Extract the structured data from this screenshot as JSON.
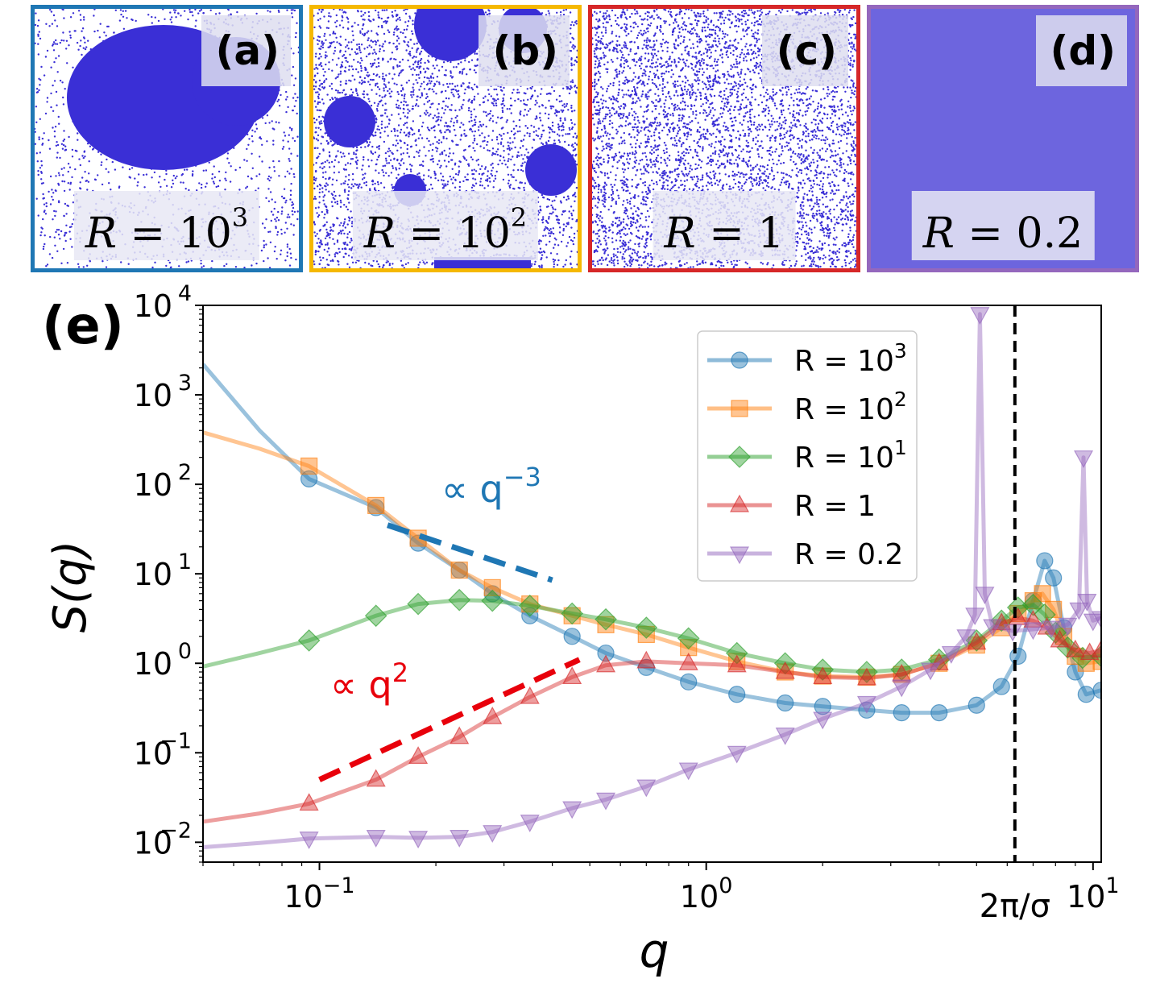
{
  "panels": [
    {
      "label": "(a)",
      "r_prefix": "R",
      "r_eq": " = ",
      "r_base": "10",
      "r_exp": "3",
      "color": "#1f77b4",
      "morphology": "single large cluster"
    },
    {
      "label": "(b)",
      "r_prefix": "R",
      "r_eq": " = ",
      "r_base": "10",
      "r_exp": "2",
      "color": "#f5b800",
      "morphology": "several clusters"
    },
    {
      "label": "(c)",
      "r_prefix": "R",
      "r_eq": " = ",
      "r_base": "1",
      "r_exp": "",
      "color": "#d62728",
      "morphology": "homogeneous"
    },
    {
      "label": "(d)",
      "r_prefix": "R",
      "r_eq": " = ",
      "r_base": "0.2",
      "r_exp": "",
      "color": "#9467bd",
      "morphology": "dense uniform"
    }
  ],
  "chart_data": {
    "type": "line",
    "panel_label": "(e)",
    "xlabel": "q",
    "ylabel": "S(q)",
    "xscale": "log",
    "yscale": "log",
    "xlim": [
      0.05,
      10.5
    ],
    "ylim": [
      0.006,
      10000
    ],
    "x_ticks": [
      {
        "value": 0.1,
        "base": "10",
        "exp": "−1"
      },
      {
        "value": 1,
        "base": "10",
        "exp": "0"
      },
      {
        "value": 10,
        "base": "10",
        "exp": "1"
      }
    ],
    "y_ticks": [
      {
        "value": 0.01,
        "base": "10",
        "exp": "−2"
      },
      {
        "value": 0.1,
        "base": "10",
        "exp": "−1"
      },
      {
        "value": 1,
        "base": "10",
        "exp": "0"
      },
      {
        "value": 10,
        "base": "10",
        "exp": "1"
      },
      {
        "value": 100,
        "base": "10",
        "exp": "2"
      },
      {
        "value": 1000,
        "base": "10",
        "exp": "3"
      },
      {
        "value": 10000,
        "base": "10",
        "exp": "4"
      }
    ],
    "vline": {
      "x": 6.28,
      "label": "2π/σ"
    },
    "legend": {
      "position": "upper right"
    },
    "series": [
      {
        "name": "R = 10^3",
        "legend_base": "R = 10",
        "legend_exp": "3",
        "color": "#1f77b4",
        "marker": "circle",
        "points": [
          [
            0.05,
            2200
          ],
          [
            0.07,
            400
          ],
          [
            0.094,
            115
          ],
          [
            0.14,
            55
          ],
          [
            0.18,
            22
          ],
          [
            0.23,
            11
          ],
          [
            0.28,
            6
          ],
          [
            0.35,
            3.4
          ],
          [
            0.45,
            2
          ],
          [
            0.55,
            1.3
          ],
          [
            0.7,
            0.9
          ],
          [
            0.9,
            0.62
          ],
          [
            1.2,
            0.45
          ],
          [
            1.6,
            0.36
          ],
          [
            2.0,
            0.33
          ],
          [
            2.6,
            0.3
          ],
          [
            3.2,
            0.28
          ],
          [
            4.0,
            0.28
          ],
          [
            5.0,
            0.34
          ],
          [
            5.8,
            0.55
          ],
          [
            6.4,
            1.2
          ],
          [
            7.0,
            5
          ],
          [
            7.5,
            14
          ],
          [
            7.9,
            9
          ],
          [
            8.4,
            2.5
          ],
          [
            9.0,
            0.8
          ],
          [
            9.6,
            0.45
          ],
          [
            10.5,
            0.5
          ]
        ]
      },
      {
        "name": "R = 10^2",
        "legend_base": "R = 10",
        "legend_exp": "2",
        "color": "#ff7f0e",
        "marker": "square",
        "points": [
          [
            0.05,
            380
          ],
          [
            0.07,
            250
          ],
          [
            0.094,
            160
          ],
          [
            0.14,
            58
          ],
          [
            0.18,
            25
          ],
          [
            0.23,
            11
          ],
          [
            0.28,
            7
          ],
          [
            0.35,
            4.6
          ],
          [
            0.45,
            3.4
          ],
          [
            0.55,
            2.7
          ],
          [
            0.7,
            2.1
          ],
          [
            0.9,
            1.5
          ],
          [
            1.2,
            1.05
          ],
          [
            1.6,
            0.8
          ],
          [
            2.0,
            0.72
          ],
          [
            2.6,
            0.7
          ],
          [
            3.2,
            0.75
          ],
          [
            4.0,
            1.0
          ],
          [
            5.0,
            1.6
          ],
          [
            5.8,
            2.5
          ],
          [
            6.4,
            3.6
          ],
          [
            7.0,
            5
          ],
          [
            7.4,
            6
          ],
          [
            7.9,
            4
          ],
          [
            8.4,
            2
          ],
          [
            9.0,
            1.2
          ],
          [
            9.6,
            1.0
          ],
          [
            10.5,
            1.05
          ]
        ]
      },
      {
        "name": "R = 10^1",
        "legend_base": "R = 10",
        "legend_exp": "1",
        "color": "#2ca02c",
        "marker": "diamond",
        "points": [
          [
            0.05,
            0.92
          ],
          [
            0.07,
            1.3
          ],
          [
            0.094,
            1.8
          ],
          [
            0.14,
            3.4
          ],
          [
            0.18,
            4.6
          ],
          [
            0.23,
            5.1
          ],
          [
            0.28,
            5.0
          ],
          [
            0.35,
            4.4
          ],
          [
            0.45,
            3.6
          ],
          [
            0.55,
            3.1
          ],
          [
            0.7,
            2.5
          ],
          [
            0.9,
            1.9
          ],
          [
            1.2,
            1.3
          ],
          [
            1.6,
            1.0
          ],
          [
            2.0,
            0.85
          ],
          [
            2.6,
            0.8
          ],
          [
            3.2,
            0.85
          ],
          [
            4.0,
            1.1
          ],
          [
            5.0,
            1.8
          ],
          [
            5.8,
            3
          ],
          [
            6.4,
            4.2
          ],
          [
            7.0,
            4.5
          ],
          [
            7.5,
            3.5
          ],
          [
            8.0,
            2.2
          ],
          [
            8.6,
            1.5
          ],
          [
            9.4,
            1.15
          ],
          [
            10.5,
            1.2
          ]
        ]
      },
      {
        "name": "R = 1",
        "legend_base": "R = 1",
        "legend_exp": "",
        "color": "#d62728",
        "marker": "triangle-up",
        "points": [
          [
            0.05,
            0.017
          ],
          [
            0.07,
            0.021
          ],
          [
            0.094,
            0.027
          ],
          [
            0.14,
            0.05
          ],
          [
            0.18,
            0.09
          ],
          [
            0.23,
            0.15
          ],
          [
            0.28,
            0.25
          ],
          [
            0.35,
            0.42
          ],
          [
            0.45,
            0.7
          ],
          [
            0.55,
            0.95
          ],
          [
            0.7,
            1.05
          ],
          [
            0.9,
            1.0
          ],
          [
            1.2,
            0.95
          ],
          [
            1.6,
            0.8
          ],
          [
            2.0,
            0.7
          ],
          [
            2.6,
            0.68
          ],
          [
            3.2,
            0.75
          ],
          [
            4.0,
            1.0
          ],
          [
            5.0,
            1.7
          ],
          [
            5.8,
            2.8
          ],
          [
            6.4,
            3.2
          ],
          [
            7.0,
            3.0
          ],
          [
            7.6,
            2.5
          ],
          [
            8.2,
            1.8
          ],
          [
            9.0,
            1.4
          ],
          [
            9.8,
            1.3
          ],
          [
            10.5,
            1.4
          ]
        ]
      },
      {
        "name": "R = 0.2",
        "legend_base": "R = 0.2",
        "legend_exp": "",
        "color": "#9467bd",
        "marker": "triangle-down",
        "points": [
          [
            0.05,
            0.0088
          ],
          [
            0.07,
            0.0098
          ],
          [
            0.094,
            0.011
          ],
          [
            0.14,
            0.0115
          ],
          [
            0.18,
            0.0112
          ],
          [
            0.23,
            0.0115
          ],
          [
            0.28,
            0.013
          ],
          [
            0.35,
            0.017
          ],
          [
            0.45,
            0.024
          ],
          [
            0.55,
            0.03
          ],
          [
            0.7,
            0.042
          ],
          [
            0.9,
            0.065
          ],
          [
            1.2,
            0.1
          ],
          [
            1.6,
            0.16
          ],
          [
            2.0,
            0.24
          ],
          [
            2.6,
            0.36
          ],
          [
            3.2,
            0.55
          ],
          [
            3.8,
            0.85
          ],
          [
            4.3,
            1.3
          ],
          [
            4.7,
            2.0
          ],
          [
            4.95,
            3.5
          ],
          [
            5.1,
            8000
          ],
          [
            5.25,
            6
          ],
          [
            5.5,
            2.6
          ],
          [
            6.2,
            2.3
          ],
          [
            7.0,
            2.4
          ],
          [
            7.8,
            2.5
          ],
          [
            8.6,
            2.7
          ],
          [
            9.2,
            4
          ],
          [
            9.45,
            200
          ],
          [
            9.65,
            5
          ],
          [
            10.0,
            3
          ],
          [
            10.5,
            3.2
          ]
        ]
      }
    ],
    "annotations": [
      {
        "text": "∝ q",
        "exp": "−3",
        "color": "#1f77b4",
        "ref_line": {
          "x": [
            0.15,
            0.4
          ],
          "y": [
            35,
            8.5
          ]
        }
      },
      {
        "text": "∝ q",
        "exp": "2",
        "color": "#e8000b",
        "ref_line": {
          "x": [
            0.1,
            0.47
          ],
          "y": [
            0.05,
            1.1
          ]
        }
      }
    ]
  }
}
